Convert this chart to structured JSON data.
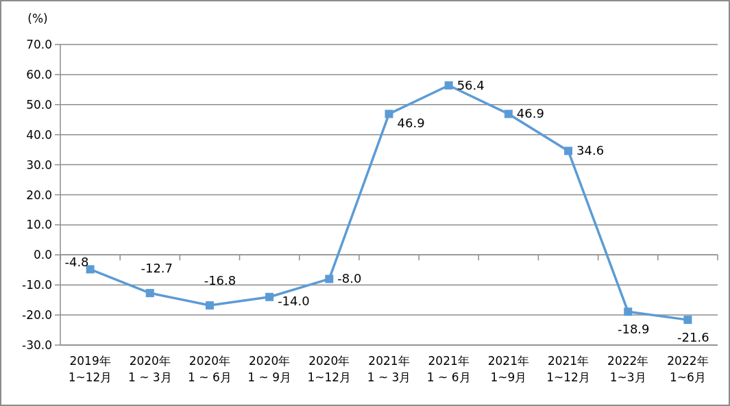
{
  "chart_data": {
    "type": "line",
    "ylabel": "(%)",
    "categories": [
      "2019年\n1~12月",
      "2020年\n1 ~ 3月",
      "2020年\n1 ~ 6月",
      "2020年\n1 ~ 9月",
      "2020年\n1~12月",
      "2021年\n1 ~ 3月",
      "2021年\n1 ~ 6月",
      "2021年\n1~9月",
      "2021年\n1~12月",
      "2022年\n1~3月",
      "2022年\n1~6月"
    ],
    "series": [
      {
        "color": "#5b9bd5",
        "values": [
          -4.8,
          -12.7,
          -16.8,
          -14.0,
          -8.0,
          46.9,
          56.4,
          46.9,
          34.6,
          -18.9,
          -21.6
        ],
        "value_labels": [
          "-4.8",
          "-12.7",
          "-16.8",
          "-14.0",
          "-8.0",
          "46.9",
          "56.4",
          "46.9",
          "34.6",
          "-18.9",
          "-21.6"
        ]
      }
    ],
    "marker": "square",
    "line_style": "solid",
    "grid": "y",
    "ylim": [
      -30,
      70
    ],
    "yticks": [
      {
        "value": -30,
        "label": "-30.0"
      },
      {
        "value": -20,
        "label": "-20.0"
      },
      {
        "value": -10,
        "label": "-10.0"
      },
      {
        "value": 0,
        "label": "0.0"
      },
      {
        "value": 10,
        "label": "10.0"
      },
      {
        "value": 20,
        "label": "20.0"
      },
      {
        "value": 30,
        "label": "30.0"
      },
      {
        "value": 40,
        "label": "40.0"
      },
      {
        "value": 50,
        "label": "50.0"
      },
      {
        "value": 60,
        "label": "60.0"
      },
      {
        "value": 70,
        "label": "70.0"
      }
    ]
  }
}
